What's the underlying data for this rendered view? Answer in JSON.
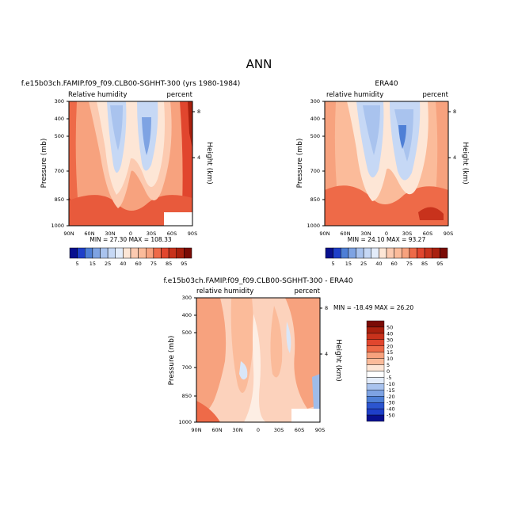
{
  "figure": {
    "title": "ANN"
  },
  "chart_data": [
    {
      "type": "heatmap",
      "title": "f.e15b03ch.FAMIP.f09_f09.CLB00-SGHHT-300 (yrs 1980-1984)",
      "left_label": "Relative humidity",
      "right_label": "percent",
      "ylabel": "Pressure (mb)",
      "ylabel_right": "Height (km)",
      "yticks": [
        "300",
        "400",
        "500",
        "700",
        "850",
        "1000"
      ],
      "yticks_right": [
        "8",
        "4"
      ],
      "xticks": [
        "90N",
        "60N",
        "30N",
        "0",
        "30S",
        "60S",
        "90S"
      ],
      "stats": "MIN = 27.30   MAX = 108.33",
      "levels": [
        5,
        15,
        25,
        40,
        60,
        75,
        85,
        95
      ]
    },
    {
      "type": "heatmap",
      "title": "ERA40",
      "left_label": "relative humidity",
      "right_label": "percent",
      "ylabel": "Pressure (mb)",
      "ylabel_right": "Height (km)",
      "yticks": [
        "300",
        "400",
        "500",
        "700",
        "850",
        "1000"
      ],
      "yticks_right": [
        "8",
        "4"
      ],
      "xticks": [
        "90N",
        "60N",
        "30N",
        "0",
        "30S",
        "60S",
        "90S"
      ],
      "stats": "MIN = 24.10   MAX = 93.27",
      "levels": [
        5,
        15,
        25,
        40,
        60,
        75,
        85,
        95
      ]
    },
    {
      "type": "heatmap",
      "title": "f.e15b03ch.FAMIP.f09_f09.CLB00-SGHHT-300 - ERA40",
      "left_label": "relative humidity",
      "right_label": "percent",
      "ylabel": "Pressure (mb)",
      "ylabel_right": "Height (km)",
      "yticks": [
        "300",
        "400",
        "500",
        "700",
        "850",
        "1000"
      ],
      "yticks_right": [
        "8",
        "4"
      ],
      "xticks": [
        "90N",
        "60N",
        "30N",
        "0",
        "30S",
        "60S",
        "90S"
      ],
      "stats": "MIN = -18.49   MAX = 26.20",
      "levels": [
        50,
        40,
        30,
        20,
        15,
        10,
        5,
        0,
        -5,
        -10,
        -15,
        -20,
        -30,
        -40,
        -50
      ]
    }
  ]
}
